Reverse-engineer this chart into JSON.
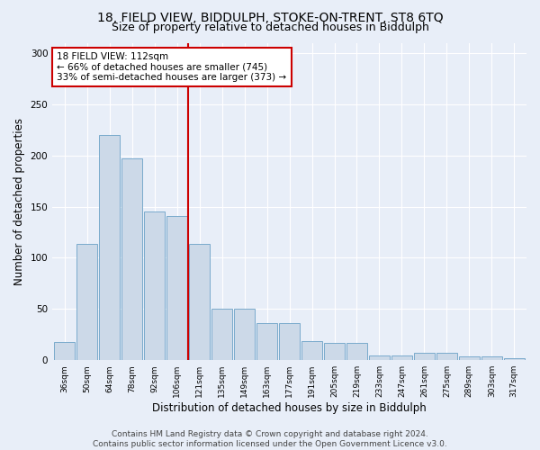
{
  "title1": "18, FIELD VIEW, BIDDULPH, STOKE-ON-TRENT, ST8 6TQ",
  "title2": "Size of property relative to detached houses in Biddulph",
  "xlabel": "Distribution of detached houses by size in Biddulph",
  "ylabel": "Number of detached properties",
  "categories": [
    "36sqm",
    "50sqm",
    "64sqm",
    "78sqm",
    "92sqm",
    "106sqm",
    "121sqm",
    "135sqm",
    "149sqm",
    "163sqm",
    "177sqm",
    "191sqm",
    "205sqm",
    "219sqm",
    "233sqm",
    "247sqm",
    "261sqm",
    "275sqm",
    "289sqm",
    "303sqm",
    "317sqm"
  ],
  "values": [
    18,
    114,
    220,
    197,
    145,
    141,
    114,
    50,
    50,
    36,
    36,
    19,
    17,
    17,
    5,
    5,
    7,
    7,
    4,
    4,
    2
  ],
  "bar_color": "#ccd9e8",
  "bar_edge_color": "#7aaacc",
  "vline_color": "#cc0000",
  "annotation_text": "18 FIELD VIEW: 112sqm\n← 66% of detached houses are smaller (745)\n33% of semi-detached houses are larger (373) →",
  "annotation_box_facecolor": "#ffffff",
  "annotation_box_edgecolor": "#cc0000",
  "ylim": [
    0,
    310
  ],
  "yticks": [
    0,
    50,
    100,
    150,
    200,
    250,
    300
  ],
  "footnote": "Contains HM Land Registry data © Crown copyright and database right 2024.\nContains public sector information licensed under the Open Government Licence v3.0.",
  "bg_color": "#e8eef8",
  "plot_bg_color": "#e8eef8",
  "grid_color": "#ffffff",
  "title1_fontsize": 10,
  "title2_fontsize": 9,
  "xlabel_fontsize": 8.5,
  "ylabel_fontsize": 8.5,
  "footnote_fontsize": 6.5
}
